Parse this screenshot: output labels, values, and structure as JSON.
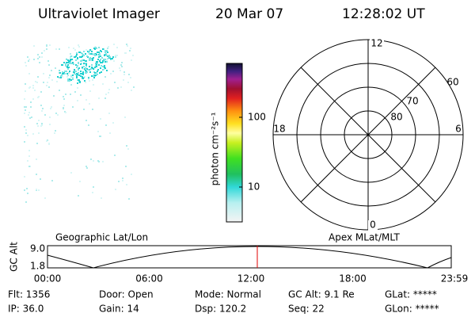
{
  "header": {
    "title": "Ultraviolet Imager",
    "date": "20 Mar 07",
    "time": "12:28:02 UT"
  },
  "colorbar": {
    "label": "photon cm⁻²s⁻¹",
    "ticks": [
      "100",
      "10"
    ]
  },
  "polar": {
    "labels": {
      "top": "12",
      "bottom": "0",
      "left": "18",
      "right": "6"
    },
    "rings": [
      "60",
      "70",
      "80"
    ]
  },
  "altitude": {
    "left_title": "Geographic Lat/Lon",
    "right_title": "Apex MLat/MLT",
    "axis_label": "GC Alt",
    "y_labels": [
      "9.0",
      "1.8"
    ],
    "x_labels": [
      "00:00",
      "06:00",
      "12:00",
      "18:00",
      "23:59"
    ]
  },
  "info": {
    "rows": [
      [
        "Flt: 1356",
        "Door: Open",
        "Mode: Normal",
        "GC Alt: 9.1 Re",
        "GLat: *****"
      ],
      [
        "IP: 36.0",
        "Gain: 14",
        "Dsp: 120.2",
        "Seq: 22",
        "GLon: *****"
      ]
    ]
  }
}
